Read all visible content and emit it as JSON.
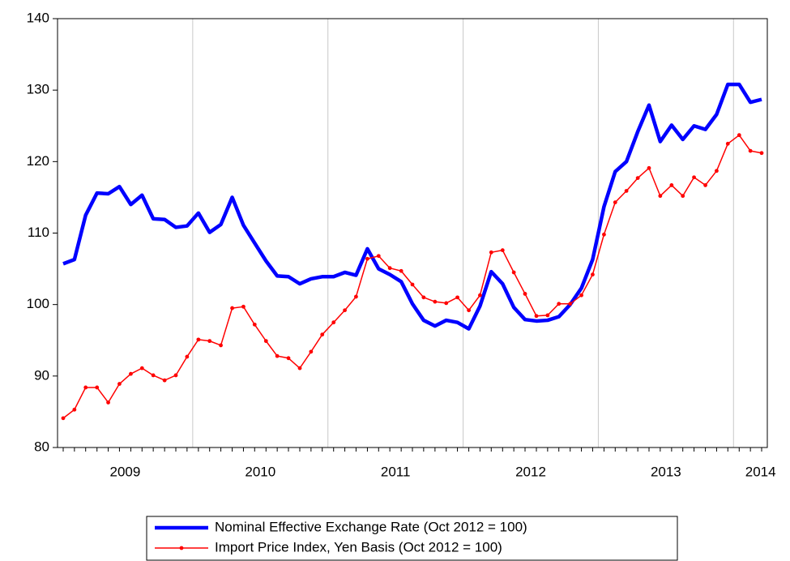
{
  "chart_data": {
    "type": "line",
    "x": [
      2009.042,
      2009.125,
      2009.208,
      2009.292,
      2009.375,
      2009.458,
      2009.542,
      2009.625,
      2009.708,
      2009.792,
      2009.875,
      2009.958,
      2010.042,
      2010.125,
      2010.208,
      2010.292,
      2010.375,
      2010.458,
      2010.542,
      2010.625,
      2010.708,
      2010.792,
      2010.875,
      2010.958,
      2011.042,
      2011.125,
      2011.208,
      2011.292,
      2011.375,
      2011.458,
      2011.542,
      2011.625,
      2011.708,
      2011.792,
      2011.875,
      2011.958,
      2012.042,
      2012.125,
      2012.208,
      2012.292,
      2012.375,
      2012.458,
      2012.542,
      2012.625,
      2012.708,
      2012.792,
      2012.875,
      2012.958,
      2013.042,
      2013.125,
      2013.208,
      2013.292,
      2013.375,
      2013.458,
      2013.542,
      2013.625,
      2013.708,
      2013.792,
      2013.875,
      2013.958,
      2014.042,
      2014.125,
      2014.208
    ],
    "series": [
      {
        "name": "Nominal Effective Exchange Rate (Oct 2012 = 100)",
        "color": "#0000ff",
        "line_width": 4.5,
        "markers": false,
        "values": [
          105.7,
          106.3,
          112.5,
          115.6,
          115.5,
          116.5,
          114.0,
          115.3,
          112.0,
          111.9,
          110.8,
          111.0,
          112.8,
          110.1,
          111.2,
          115.0,
          111.1,
          108.6,
          106.1,
          104.0,
          103.9,
          102.9,
          103.6,
          103.9,
          103.9,
          104.5,
          104.1,
          107.8,
          105.0,
          104.2,
          103.2,
          100.1,
          97.8,
          97.0,
          97.8,
          97.5,
          96.6,
          99.8,
          104.6,
          102.9,
          99.6,
          97.9,
          97.7,
          97.8,
          98.3,
          100.0,
          102.3,
          106.3,
          113.7,
          118.6,
          120.0,
          124.2,
          127.9,
          122.8,
          125.1,
          123.1,
          125.0,
          124.5,
          126.6,
          130.8,
          130.8,
          128.3,
          128.7
        ]
      },
      {
        "name": "Import Price Index, Yen Basis (Oct 2012 = 100)",
        "color": "#ff0000",
        "line_width": 1.5,
        "markers": true,
        "values": [
          84.1,
          85.3,
          88.4,
          88.4,
          86.3,
          88.9,
          90.3,
          91.1,
          90.1,
          89.4,
          90.1,
          92.7,
          95.1,
          94.9,
          94.3,
          99.5,
          99.7,
          97.2,
          94.9,
          92.8,
          92.5,
          91.1,
          93.4,
          95.8,
          97.5,
          99.2,
          101.1,
          106.4,
          106.8,
          105.1,
          104.7,
          102.8,
          101.0,
          100.4,
          100.2,
          101.0,
          99.2,
          101.3,
          107.3,
          107.6,
          104.5,
          101.5,
          98.4,
          98.5,
          100.1,
          100.1,
          101.3,
          104.2,
          109.8,
          114.3,
          115.9,
          117.7,
          119.1,
          115.2,
          116.7,
          115.2,
          117.8,
          116.7,
          118.7,
          122.5,
          123.7,
          121.5,
          121.2
        ]
      }
    ],
    "xlim": [
      2009,
      2014.25
    ],
    "xticks": [
      {
        "value": 2009.5,
        "label": "2009"
      },
      {
        "value": 2010.5,
        "label": "2010"
      },
      {
        "value": 2011.5,
        "label": "2011"
      },
      {
        "value": 2012.5,
        "label": "2012"
      },
      {
        "value": 2013.5,
        "label": "2013"
      },
      {
        "value": 2014.2,
        "label": "2014"
      }
    ],
    "xgrid": [
      2010,
      2011,
      2012,
      2013,
      2014
    ],
    "grid_color": "#c8c8c8",
    "ylim": [
      80,
      140
    ],
    "yticks": [
      80,
      90,
      100,
      110,
      120,
      130,
      140
    ],
    "legend": "bottom"
  }
}
